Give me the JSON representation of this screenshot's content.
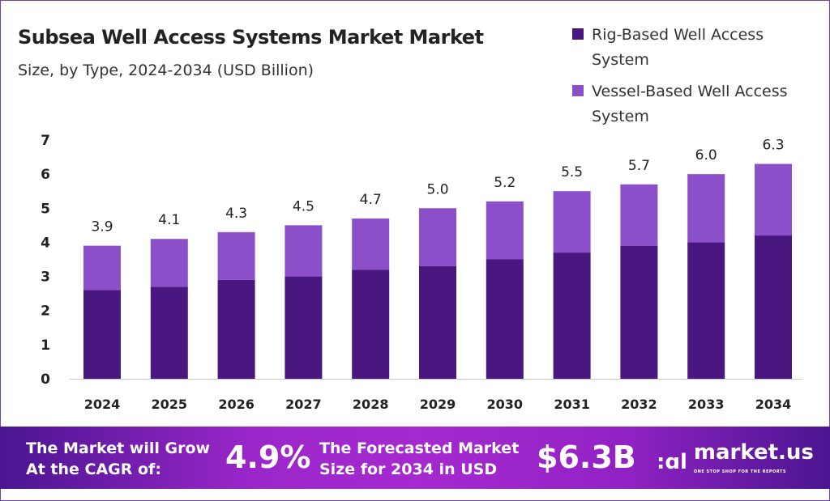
{
  "header": {
    "title": "Subsea Well Access Systems Market Market",
    "subtitle": "Size, by Type, 2024-2034 (USD Billion)"
  },
  "chart_data": {
    "type": "bar",
    "stacked": true,
    "title": "Subsea Well Access Systems Market Market",
    "subtitle": "Size, by Type, 2024-2034 (USD Billion)",
    "categories": [
      "2024",
      "2025",
      "2026",
      "2027",
      "2028",
      "2029",
      "2030",
      "2031",
      "2032",
      "2033",
      "2034"
    ],
    "series": [
      {
        "name": "Rig-Based Well Access System",
        "color": "#4a1780",
        "values": [
          2.6,
          2.7,
          2.9,
          3.0,
          3.2,
          3.3,
          3.5,
          3.7,
          3.9,
          4.0,
          4.2
        ]
      },
      {
        "name": "Vessel-Based Well Access System",
        "color": "#8b4fc9",
        "values": [
          1.3,
          1.4,
          1.4,
          1.5,
          1.5,
          1.7,
          1.7,
          1.8,
          1.8,
          2.0,
          2.1
        ]
      }
    ],
    "totals": [
      "3.9",
      "4.1",
      "4.3",
      "4.5",
      "4.7",
      "5.0",
      "5.2",
      "5.5",
      "5.7",
      "6.0",
      "6.3"
    ],
    "ylim": [
      0,
      7
    ],
    "yticks": [
      "0",
      "1",
      "2",
      "3",
      "4",
      "5",
      "6",
      "7"
    ],
    "grid": false,
    "legend": "top-right"
  },
  "legend": {
    "items": [
      {
        "label": "Rig-Based Well Access System",
        "color": "#4a1780"
      },
      {
        "label": "Vessel-Based Well Access System",
        "color": "#8b4fc9"
      }
    ]
  },
  "footer": {
    "cagr_label": "The Market will Grow At the CAGR of:",
    "cagr_value": "4.9%",
    "forecast_label": "The Forecasted Market Size for 2034 in USD",
    "forecast_value": "$6.3B",
    "brand": "market.us",
    "brand_tagline": "ONE STOP SHOP FOR THE REPORTS"
  }
}
